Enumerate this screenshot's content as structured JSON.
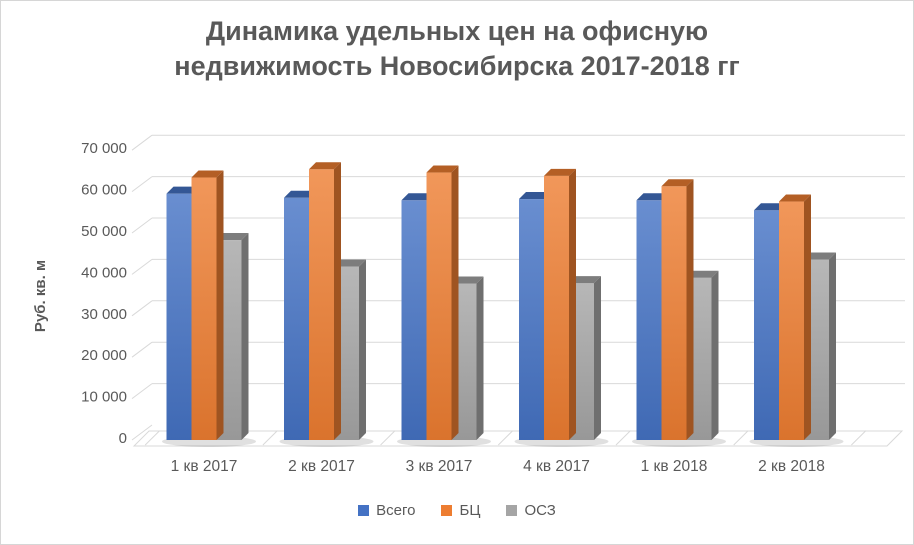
{
  "frame": {
    "background": "#ffffff",
    "border_color": "#d6d6d6"
  },
  "chart_data": {
    "type": "bar",
    "style": "3d-column",
    "title": "Динамика удельных цен на офисную недвижимость Новосибирска 2017-2018 гг",
    "title_lines": [
      "Динамика удельных цен на офисную",
      "недвижимость Новосибирска 2017-2018 гг"
    ],
    "ylabel": "Руб. кв. м",
    "xlabel": "",
    "categories": [
      "1 кв 2017",
      "2 кв 2017",
      "3 кв 2017",
      "4 кв 2017",
      "1 кв 2018",
      "2 кв 2018"
    ],
    "series": [
      {
        "name": "Всего",
        "color": "#4472C4",
        "values": [
          59500,
          58500,
          57900,
          58200,
          57900,
          55500
        ]
      },
      {
        "name": "БЦ",
        "color": "#ED7D31",
        "values": [
          63400,
          65400,
          64600,
          63800,
          61300,
          57600
        ]
      },
      {
        "name": "ОСЗ",
        "color": "#A5A5A5",
        "values": [
          48300,
          41900,
          37800,
          37900,
          39200,
          43600
        ]
      }
    ],
    "y_axis": {
      "min": 0,
      "max": 70000,
      "step": 10000,
      "tick_labels": [
        "0",
        "10 000",
        "20 000",
        "30 000",
        "40 000",
        "50 000",
        "60 000",
        "70 000"
      ]
    },
    "legend_position": "bottom",
    "grid": true,
    "text_color": "#595959",
    "gridline_color": "#D9D9D9"
  }
}
